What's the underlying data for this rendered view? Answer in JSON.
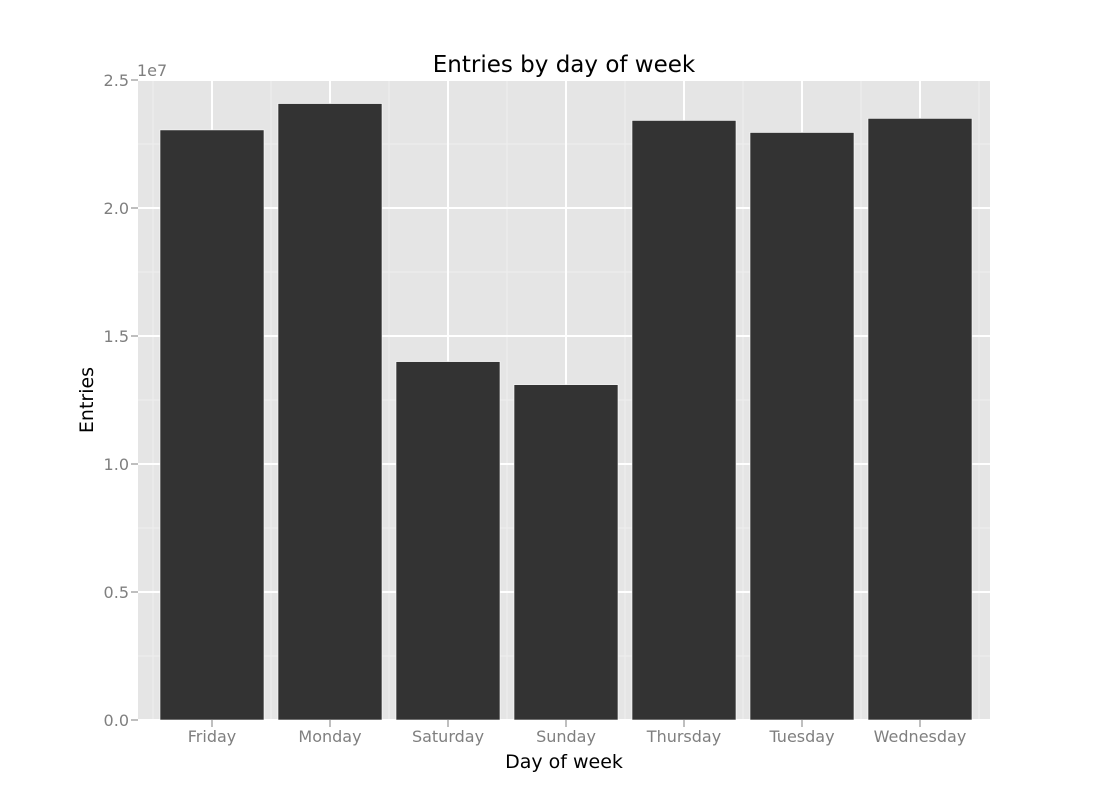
{
  "chart_data": {
    "type": "bar",
    "title": "Entries by day of week",
    "xlabel": "Day of week",
    "ylabel": "Entries",
    "categories": [
      "Friday",
      "Monday",
      "Saturday",
      "Sunday",
      "Thursday",
      "Tuesday",
      "Wednesday"
    ],
    "values": [
      23050000,
      24080000,
      14000000,
      13100000,
      23420000,
      22950000,
      23500000
    ],
    "ylim": [
      0,
      25000000
    ],
    "y_tick_labels": [
      "0.0",
      "0.5",
      "1.0",
      "1.5",
      "2.0",
      "2.5"
    ],
    "y_tick_values": [
      0,
      5000000,
      10000000,
      15000000,
      20000000,
      25000000
    ],
    "y_scale_label": "1e7",
    "grid": true,
    "colors": {
      "panel_background": "#e5e5e5",
      "grid_major": "#ffffff",
      "grid_minor": "#eeeeee",
      "bar_fill": "#333333",
      "bar_edge": "#ffffff",
      "tick_color": "#7f7f7f"
    }
  }
}
